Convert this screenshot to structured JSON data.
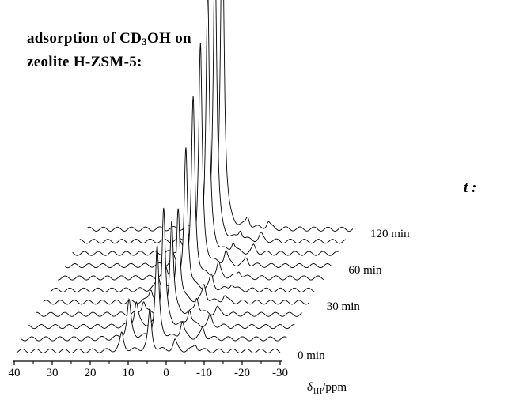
{
  "title": {
    "line1_prefix": "adsorption of CD",
    "line1_sub": "3",
    "line1_suffix": "OH on",
    "line2": "zeolite H-ZSM-5:"
  },
  "t_label": "t :",
  "chart_data": {
    "type": "line",
    "title": "adsorption of CD3OH on zeolite H-ZSM-5:",
    "xlabel": "δ1H/ppm",
    "ylabel": "",
    "x_axis_reversed": true,
    "xlim": [
      40,
      -30
    ],
    "x_ticks": [
      "40",
      "30",
      "20",
      "10",
      "0",
      "-10",
      "-20",
      "-30"
    ],
    "stacked_waterfall": true,
    "time_annotation_label": "t :",
    "time_labels": [
      {
        "label": "0 min",
        "spectrum_index": 0
      },
      {
        "label": "30 min",
        "spectrum_index": 4
      },
      {
        "label": "60 min",
        "spectrum_index": 7
      },
      {
        "label": "120 min",
        "spectrum_index": 10
      }
    ],
    "peak_positions_ppm": [
      4.5,
      11.5,
      -2,
      -7.5
    ],
    "series": [
      {
        "index": 0,
        "peaks": [
          {
            "x": 4.3,
            "h": 0.12
          },
          {
            "x": 11.7,
            "h": 0.05
          },
          {
            "x": -2.3,
            "h": 0.03
          },
          {
            "x": -7.7,
            "h": 0.02
          }
        ]
      },
      {
        "index": 1,
        "peaks": [
          {
            "x": 4.3,
            "h": 0.27
          },
          {
            "x": 11.7,
            "h": 0.11
          },
          {
            "x": -2.3,
            "h": 0.05
          },
          {
            "x": -7.7,
            "h": 0.03
          }
        ]
      },
      {
        "index": 2,
        "peaks": [
          {
            "x": 4.5,
            "h": 0.35
          },
          {
            "x": 11.7,
            "h": 0.07
          },
          {
            "x": -2.3,
            "h": 0.05
          },
          {
            "x": -7.7,
            "h": 0.03
          }
        ]
      },
      {
        "index": 3,
        "peaks": [
          {
            "x": 4.3,
            "h": 0.28
          },
          {
            "x": 11.7,
            "h": 0.04
          },
          {
            "x": -2.3,
            "h": 0.05
          },
          {
            "x": -7.7,
            "h": 0.02
          }
        ]
      },
      {
        "index": 4,
        "peaks": [
          {
            "x": 4.5,
            "h": 0.28
          },
          {
            "x": 11.7,
            "h": 0.04
          },
          {
            "x": -2.3,
            "h": 0.05
          },
          {
            "x": -7.7,
            "h": 0.02
          }
        ]
      },
      {
        "index": 5,
        "peaks": [
          {
            "x": 4.4,
            "h": 0.42
          },
          {
            "x": 11.7,
            "h": 0.04
          },
          {
            "x": -2.3,
            "h": 0.04
          },
          {
            "x": -7.7,
            "h": 0.02
          }
        ]
      },
      {
        "index": 6,
        "peaks": [
          {
            "x": 4.4,
            "h": 0.53
          },
          {
            "x": 11.7,
            "h": 0.03
          },
          {
            "x": -2.3,
            "h": 0.04
          },
          {
            "x": -7.7,
            "h": 0.02
          }
        ]
      },
      {
        "index": 7,
        "peaks": [
          {
            "x": 4.4,
            "h": 0.65
          },
          {
            "x": 11.7,
            "h": 0.03
          },
          {
            "x": -2.3,
            "h": 0.04
          },
          {
            "x": -7.7,
            "h": 0.02
          }
        ]
      },
      {
        "index": 8,
        "peaks": [
          {
            "x": 4.4,
            "h": 0.78
          },
          {
            "x": 11.7,
            "h": 0.03
          },
          {
            "x": -2.3,
            "h": 0.03
          },
          {
            "x": -7.7,
            "h": 0.02
          }
        ]
      },
      {
        "index": 9,
        "peaks": [
          {
            "x": 4.4,
            "h": 0.88
          },
          {
            "x": 11.7,
            "h": 0.02
          },
          {
            "x": -2.3,
            "h": 0.03
          },
          {
            "x": -7.7,
            "h": 0.02
          }
        ]
      },
      {
        "index": 10,
        "peaks": [
          {
            "x": 4.4,
            "h": 1.0
          },
          {
            "x": 11.7,
            "h": 0.02
          },
          {
            "x": -2.3,
            "h": 0.03
          },
          {
            "x": -7.7,
            "h": 0.02
          }
        ]
      }
    ],
    "grid": false,
    "legend": "none",
    "line_color": "#000000"
  }
}
